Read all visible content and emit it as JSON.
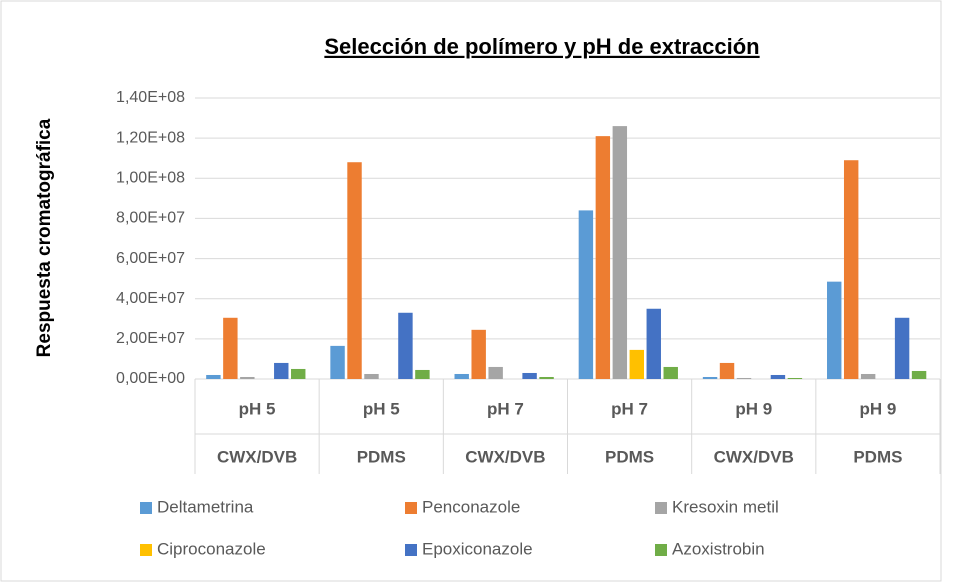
{
  "chart_data": {
    "type": "bar",
    "title": "Selección de polímero y pH de extracción",
    "y_label": "Respuesta cromatográfica",
    "categories": [
      "pH 5",
      "pH 5",
      "pH 7",
      "pH 7",
      "pH 9",
      "pH 9"
    ],
    "subcategories": [
      "CWX/DVB",
      "PDMS",
      "CWX/DVB",
      "PDMS",
      "CWX/DVB",
      "PDMS"
    ],
    "series": [
      {
        "name": "Deltametrina",
        "color": "#5b9bd5",
        "values": [
          2000000,
          16500000,
          2500000,
          84000000,
          1000000,
          48500000
        ]
      },
      {
        "name": "Penconazole",
        "color": "#ed7d31",
        "values": [
          30500000,
          108000000,
          24500000,
          121000000,
          8000000,
          109000000
        ]
      },
      {
        "name": "Kresoxin metil",
        "color": "#a5a5a5",
        "values": [
          1000000,
          2500000,
          6000000,
          126000000,
          500000,
          2500000
        ]
      },
      {
        "name": "Ciproconazole",
        "color": "#ffc000",
        "values": [
          0,
          0,
          0,
          14500000,
          0,
          0
        ]
      },
      {
        "name": "Epoxiconazole",
        "color": "#4472c4",
        "values": [
          8000000,
          33000000,
          3000000,
          35000000,
          2000000,
          30500000
        ]
      },
      {
        "name": "Azoxistrobin",
        "color": "#70ad47",
        "values": [
          5000000,
          4500000,
          1000000,
          6000000,
          500000,
          4000000
        ]
      }
    ],
    "ylim": [
      0,
      140000000
    ],
    "yticks": [
      {
        "value": 0,
        "label": "0,00E+00"
      },
      {
        "value": 20000000,
        "label": "2,00E+07"
      },
      {
        "value": 40000000,
        "label": "4,00E+07"
      },
      {
        "value": 60000000,
        "label": "6,00E+07"
      },
      {
        "value": 80000000,
        "label": "8,00E+07"
      },
      {
        "value": 100000000,
        "label": "1,00E+08"
      },
      {
        "value": 120000000,
        "label": "1,20E+08"
      },
      {
        "value": 140000000,
        "label": "1,40E+08"
      }
    ],
    "grid": true,
    "legend": "bottom"
  }
}
